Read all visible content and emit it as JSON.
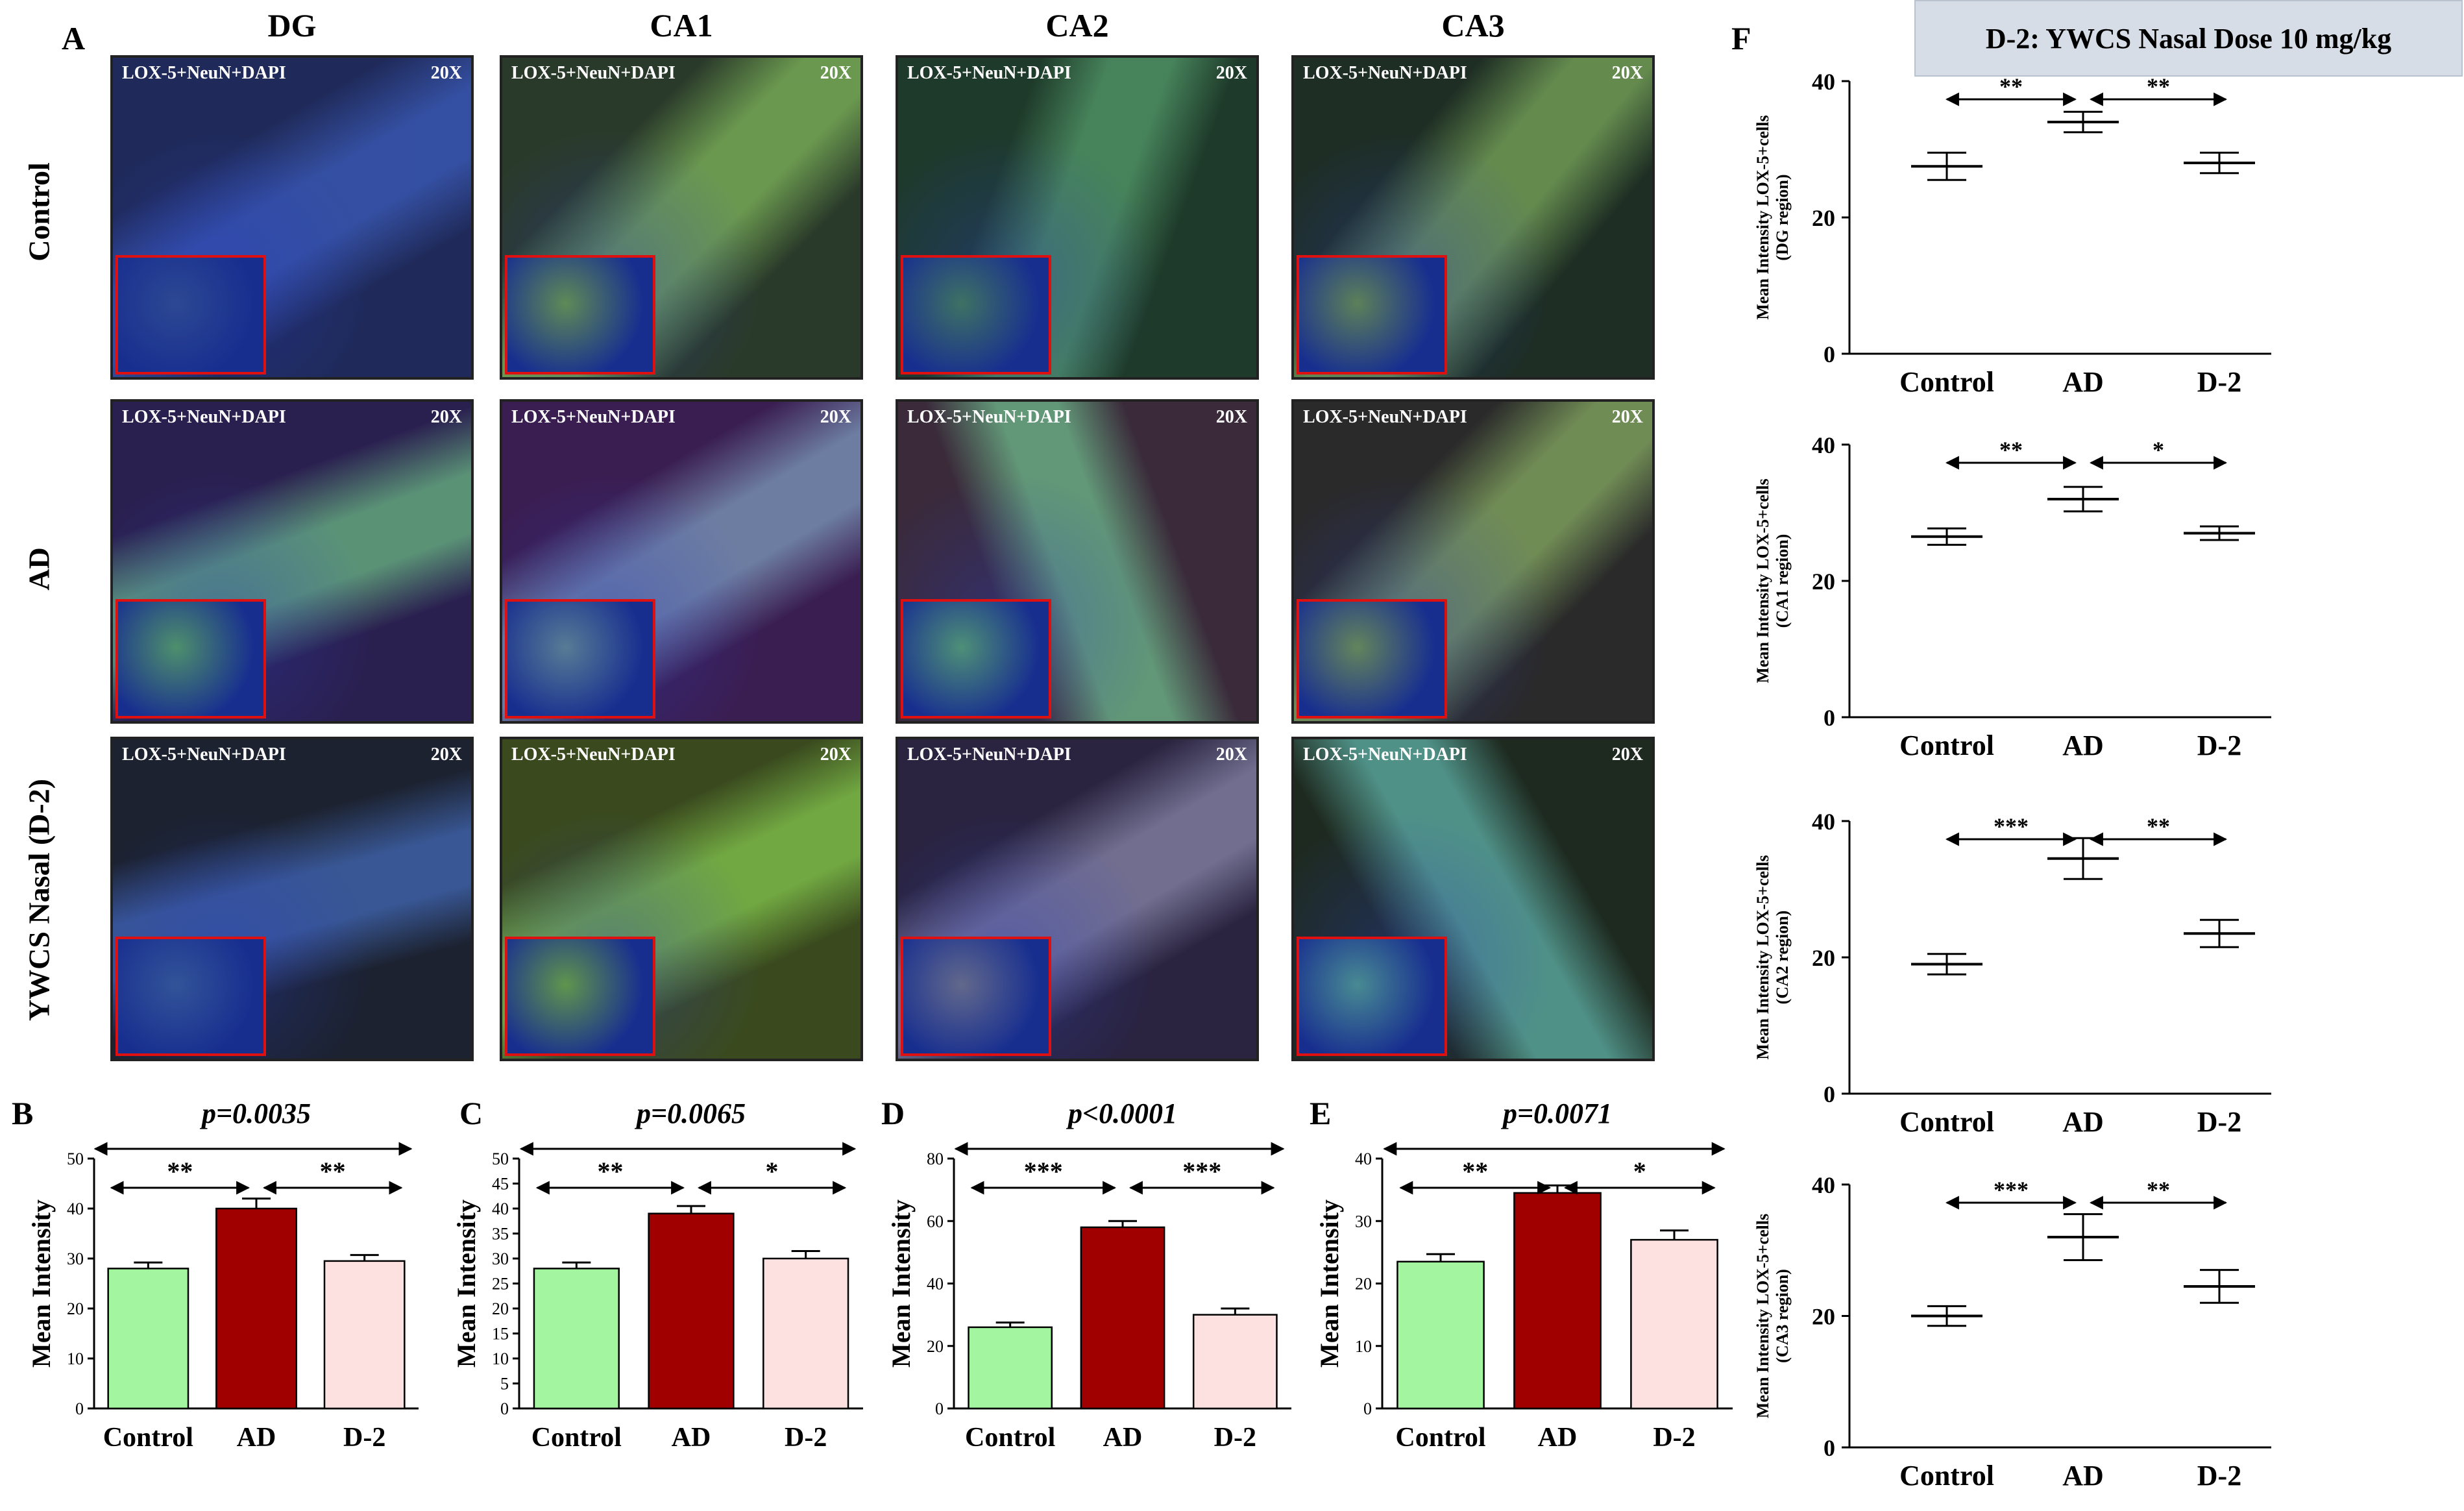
{
  "panel_labels": {
    "A": "A",
    "B": "B",
    "C": "C",
    "D": "D",
    "E": "E",
    "F": "F"
  },
  "columns": [
    "DG",
    "CA1",
    "CA2",
    "CA3"
  ],
  "rows": [
    "Control",
    "AD",
    "YWCS Nasal (D-2)"
  ],
  "image_caption": "LOX-5+NeuN+DAPI",
  "magnification": "20X",
  "banner": "D-2: YWCS Nasal Dose 10 mg/kg",
  "colors": {
    "control": "#a3f5a0",
    "ad": "#a00000",
    "d2": "#fde0e0"
  },
  "chart_data": [
    {
      "id": "B",
      "type": "bar",
      "categories": [
        "Control",
        "AD",
        "D-2"
      ],
      "values": [
        28,
        40,
        29.5
      ],
      "errors": [
        1.2,
        2,
        1.2
      ],
      "ylabel": "Mean Intensity",
      "ylim": [
        0,
        50
      ],
      "yticks": [
        0,
        10,
        20,
        30,
        40,
        50
      ],
      "pvalue": "p=0.0035",
      "sig": [
        {
          "from": 0,
          "to": 1,
          "label": "**"
        },
        {
          "from": 1,
          "to": 2,
          "label": "**"
        }
      ]
    },
    {
      "id": "C",
      "type": "bar",
      "categories": [
        "Control",
        "AD",
        "D-2"
      ],
      "values": [
        28,
        39,
        30
      ],
      "errors": [
        1.2,
        1.5,
        1.5
      ],
      "ylabel": "Mean Intensity",
      "ylim": [
        0,
        50
      ],
      "yticks": [
        0,
        5,
        10,
        15,
        20,
        25,
        30,
        35,
        40,
        45,
        50
      ],
      "pvalue": "p=0.0065",
      "sig": [
        {
          "from": 0,
          "to": 1,
          "label": "**"
        },
        {
          "from": 1,
          "to": 2,
          "label": "*"
        }
      ]
    },
    {
      "id": "D",
      "type": "bar",
      "categories": [
        "Control",
        "AD",
        "D-2"
      ],
      "values": [
        26,
        58,
        30
      ],
      "errors": [
        1.5,
        2,
        2
      ],
      "ylabel": "Mean Intensity",
      "ylim": [
        0,
        80
      ],
      "yticks": [
        0,
        20,
        40,
        60,
        80
      ],
      "pvalue": "p<0.0001",
      "sig": [
        {
          "from": 0,
          "to": 1,
          "label": "***"
        },
        {
          "from": 1,
          "to": 2,
          "label": "***"
        }
      ]
    },
    {
      "id": "E",
      "type": "bar",
      "categories": [
        "Control",
        "AD",
        "D-2"
      ],
      "values": [
        23.5,
        34.5,
        27
      ],
      "errors": [
        1.2,
        1.2,
        1.5
      ],
      "ylabel": "Mean Intensity",
      "ylim": [
        0,
        40
      ],
      "yticks": [
        0,
        10,
        20,
        30,
        40
      ],
      "pvalue": "p=0.0071",
      "sig": [
        {
          "from": 0,
          "to": 1,
          "label": "**"
        },
        {
          "from": 1,
          "to": 2,
          "label": "*"
        }
      ]
    },
    {
      "id": "F1",
      "type": "scatter",
      "categories": [
        "Control",
        "AD",
        "D-2"
      ],
      "means": [
        27.5,
        34,
        28
      ],
      "errors": [
        2,
        1.5,
        1.5
      ],
      "ylabel": "Mean Intensity LOX-5+cells",
      "ylabel2": "(DG region)",
      "ylim": [
        0,
        40
      ],
      "yticks": [
        0,
        20,
        40
      ],
      "sig": [
        {
          "from": 0,
          "to": 1,
          "label": "**"
        },
        {
          "from": 1,
          "to": 2,
          "label": "**"
        }
      ]
    },
    {
      "id": "F2",
      "type": "scatter",
      "categories": [
        "Control",
        "AD",
        "D-2"
      ],
      "means": [
        26.5,
        32,
        27
      ],
      "errors": [
        1.2,
        1.8,
        1
      ],
      "ylabel": "Mean Intensity LOX-5+cells",
      "ylabel2": "(CA1 region)",
      "ylim": [
        0,
        40
      ],
      "yticks": [
        0,
        20,
        40
      ],
      "sig": [
        {
          "from": 0,
          "to": 1,
          "label": "**"
        },
        {
          "from": 1,
          "to": 2,
          "label": "*"
        }
      ]
    },
    {
      "id": "F3",
      "type": "scatter",
      "categories": [
        "Control",
        "AD",
        "D-2"
      ],
      "means": [
        19,
        34.5,
        23.5
      ],
      "errors": [
        1.5,
        3,
        2
      ],
      "ylabel": "Mean Intensity LOX-5+cells",
      "ylabel2": "(CA2 region)",
      "ylim": [
        0,
        40
      ],
      "yticks": [
        0,
        20,
        40
      ],
      "sig": [
        {
          "from": 0,
          "to": 1,
          "label": "***"
        },
        {
          "from": 1,
          "to": 2,
          "label": "**"
        }
      ]
    },
    {
      "id": "F4",
      "type": "scatter",
      "categories": [
        "Control",
        "AD",
        "D-2"
      ],
      "means": [
        20,
        32,
        24.5
      ],
      "errors": [
        1.5,
        3.5,
        2.5
      ],
      "ylabel": "Mean Intensity LOX-5+cells",
      "ylabel2": "(CA3 region)",
      "ylim": [
        0,
        40
      ],
      "yticks": [
        0,
        20,
        40
      ],
      "sig": [
        {
          "from": 0,
          "to": 1,
          "label": "***"
        },
        {
          "from": 1,
          "to": 2,
          "label": "**"
        }
      ]
    }
  ]
}
